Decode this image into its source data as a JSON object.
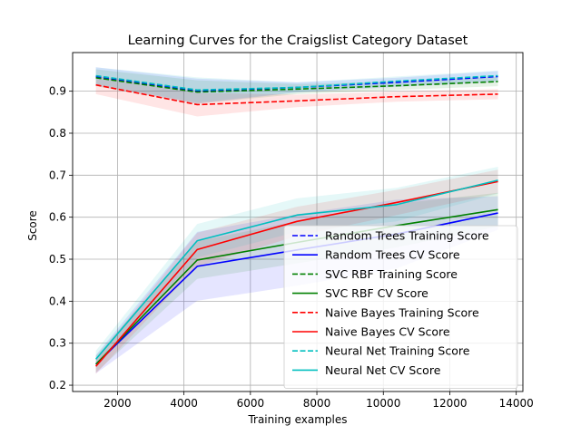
{
  "chart_data": {
    "type": "line",
    "title": "Learning Curves for the Craigslist Category Dataset",
    "xlabel": "Training examples",
    "ylabel": "Score",
    "xlim": [
      650,
      14200
    ],
    "ylim": [
      0.185,
      0.992
    ],
    "xticks": [
      2000,
      4000,
      6000,
      8000,
      10000,
      12000,
      14000
    ],
    "xtick_labels": [
      "2000",
      "4000",
      "6000",
      "8000",
      "10000",
      "12000",
      "14000"
    ],
    "yticks": [
      0.2,
      0.3,
      0.4,
      0.5,
      0.6,
      0.7,
      0.8,
      0.9
    ],
    "ytick_labels": [
      "0.2",
      "0.3",
      "0.4",
      "0.5",
      "0.6",
      "0.7",
      "0.8",
      "0.9"
    ],
    "grid": true,
    "legend_position": "lower-right",
    "x": [
      1350,
      4400,
      7400,
      10400,
      13450
    ],
    "series": [
      {
        "name": "Random Trees Training Score",
        "color": "#0000ff",
        "dashed": true,
        "values": [
          0.935,
          0.9,
          0.909,
          0.921,
          0.935
        ],
        "band": [
          0.022,
          0.03,
          0.012,
          0.011,
          0.013
        ]
      },
      {
        "name": "Random Trees CV Score",
        "color": "#0000ff",
        "dashed": false,
        "values": [
          0.25,
          0.483,
          0.522,
          0.56,
          0.61
        ],
        "band": [
          0.022,
          0.082,
          0.085,
          0.082,
          0.04
        ]
      },
      {
        "name": "SVC RBF Training Score",
        "color": "#008000",
        "dashed": true,
        "values": [
          0.932,
          0.898,
          0.905,
          0.913,
          0.923
        ],
        "band": [
          0.02,
          0.028,
          0.012,
          0.01,
          0.011
        ]
      },
      {
        "name": "SVC RBF CV Score",
        "color": "#008000",
        "dashed": false,
        "values": [
          0.25,
          0.498,
          0.54,
          0.58,
          0.618
        ],
        "band": [
          0.02,
          0.045,
          0.05,
          0.052,
          0.04
        ]
      },
      {
        "name": "Naive Bayes Training Score",
        "color": "#ff0000",
        "dashed": true,
        "values": [
          0.915,
          0.868,
          0.877,
          0.887,
          0.893
        ],
        "band": [
          0.022,
          0.028,
          0.015,
          0.012,
          0.012
        ]
      },
      {
        "name": "Naive Bayes CV Score",
        "color": "#ff0000",
        "dashed": false,
        "values": [
          0.245,
          0.523,
          0.59,
          0.635,
          0.685
        ],
        "band": [
          0.018,
          0.04,
          0.035,
          0.03,
          0.028
        ]
      },
      {
        "name": "Neural Net Training Score",
        "color": "#00bfbf",
        "dashed": true,
        "values": [
          0.937,
          0.903,
          0.909,
          0.924,
          0.937
        ],
        "band": [
          0.02,
          0.03,
          0.012,
          0.011,
          0.012
        ]
      },
      {
        "name": "Neural Net CV Score",
        "color": "#00bfbf",
        "dashed": false,
        "values": [
          0.262,
          0.544,
          0.605,
          0.63,
          0.688
        ],
        "band": [
          0.02,
          0.04,
          0.04,
          0.04,
          0.032
        ]
      }
    ]
  }
}
